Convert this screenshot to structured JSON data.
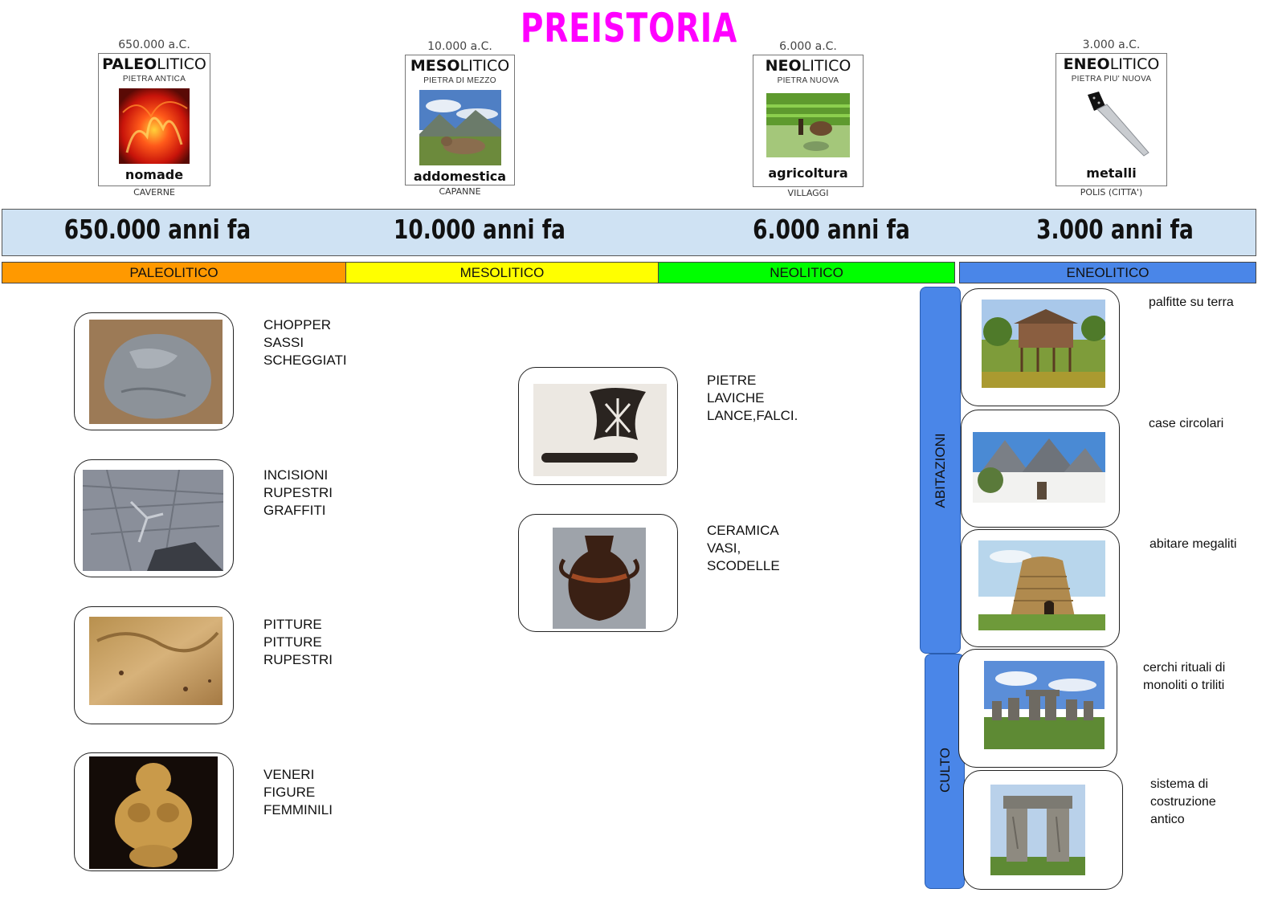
{
  "title": "PREISTORIA",
  "cards": [
    {
      "date": "650.000 a.C.",
      "bold": "PALEO",
      "rest": "LITICO",
      "sub": "PIETRA ANTICA",
      "word": "nomade",
      "below": "CAVERNE"
    },
    {
      "date": "10.000 a.C.",
      "bold": "MESO",
      "rest": "LITICO",
      "sub": "PIETRA DI MEZZO",
      "word": "addomestica",
      "below": "CAPANNE"
    },
    {
      "date": "6.000 a.C.",
      "bold": "NEO",
      "rest": "LITICO",
      "sub": "PIETRA NUOVA",
      "word": "agricoltura",
      "below": "VILLAGGI"
    },
    {
      "date": "3.000 a.C.",
      "bold": "ENEO",
      "rest": "LITICO",
      "sub": "PIETRA PIU' NUOVA",
      "word": "metalli",
      "below": "POLIS (CITTA')"
    }
  ],
  "timeline": [
    "650.000 anni fa",
    "10.000 anni fa",
    "6.000 anni fa",
    "3.000 anni fa"
  ],
  "eras": [
    "PALEOLITICO",
    "MESOLITICO",
    "NEOLITICO",
    "ENEOLITICO"
  ],
  "era_colors": [
    "#ff9900",
    "#ffff00",
    "#00ff00",
    "#4a86e8"
  ],
  "paleo_items": [
    "CHOPPER\nSASSI\nSCHEGGIATI",
    "INCISIONI\nRUPESTRI\nGRAFFITI",
    "PITTURE\nPITTURE\nRUPESTRI",
    "VENERI\nFIGURE\nFEMMINILI"
  ],
  "meso_items": [
    "PIETRE\nLAVICHE\nLANCE,FALCI.",
    "CERAMICA\nVASI,\nSCODELLE"
  ],
  "side_bars": [
    "ABITAZIONI",
    "CULTO"
  ],
  "right_items": [
    "palfitte su terra",
    "case circolari",
    "abitare megaliti",
    "cerchi rituali di monoliti o triliti",
    "sistema di costruzione antico"
  ]
}
